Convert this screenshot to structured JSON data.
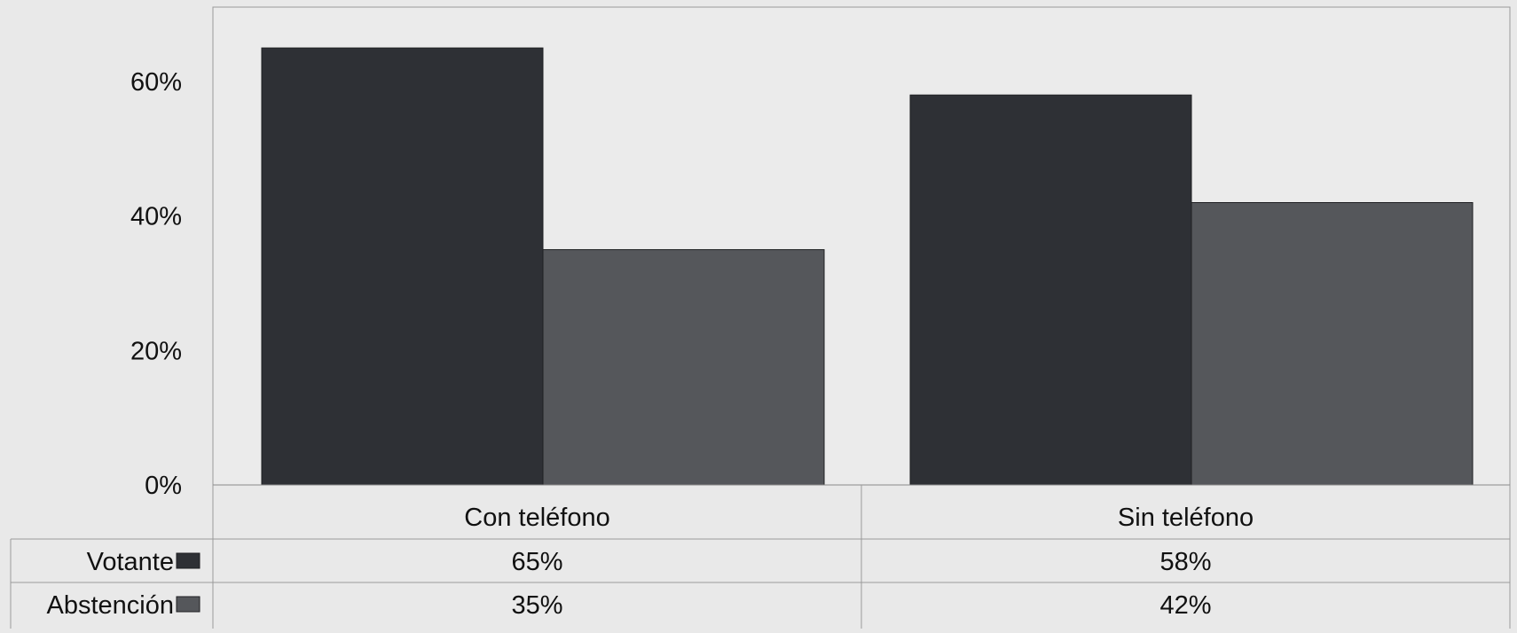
{
  "chart_data": {
    "type": "bar",
    "categories": [
      "Con teléfono",
      "Sin teléfono"
    ],
    "series": [
      {
        "name": "Votante",
        "values": [
          65,
          58
        ],
        "labels": [
          "65%",
          "58%"
        ],
        "color": "#2e3035"
      },
      {
        "name": "Abstención",
        "values": [
          35,
          42
        ],
        "labels": [
          "35%",
          "42%"
        ],
        "color": "#55575b"
      }
    ],
    "y_ticks": [
      "0%",
      "20%",
      "40%",
      "60%"
    ],
    "ylim": [
      0,
      70
    ],
    "legend_placement": "data-table-left",
    "grid": false
  }
}
